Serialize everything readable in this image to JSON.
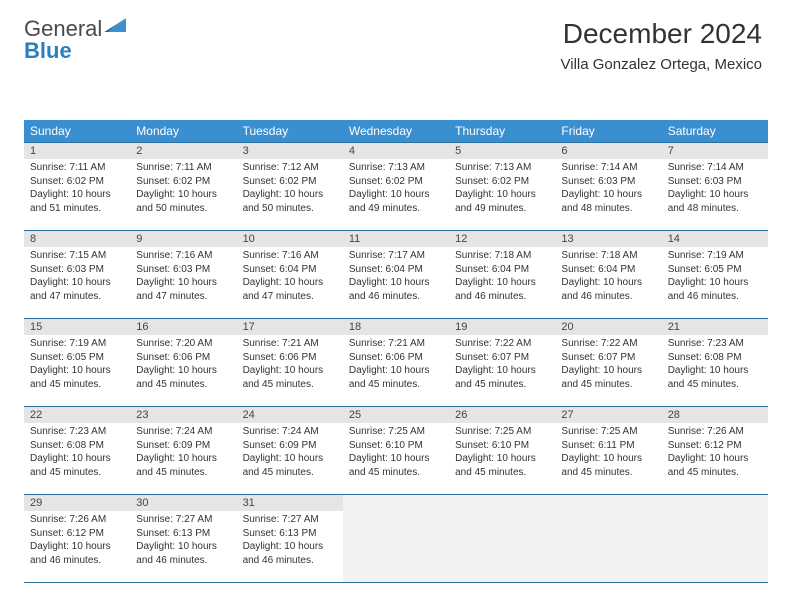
{
  "brand": {
    "part1": "General",
    "part2": "Blue"
  },
  "title": "December 2024",
  "location": "Villa Gonzalez Ortega, Mexico",
  "colors": {
    "header_bg": "#3a8fd0",
    "header_border": "#2a6fa0",
    "daynum_bg": "#e5e5e5",
    "empty_bg": "#f2f2f2",
    "text": "#333333",
    "page_bg": "#ffffff"
  },
  "typography": {
    "title_fontsize": 28,
    "location_fontsize": 15,
    "dayhead_fontsize": 12,
    "cell_fontsize": 10
  },
  "weekdays": [
    "Sunday",
    "Monday",
    "Tuesday",
    "Wednesday",
    "Thursday",
    "Friday",
    "Saturday"
  ],
  "weeks": [
    [
      {
        "n": "1",
        "sr": "7:11 AM",
        "ss": "6:02 PM",
        "dl": "10 hours and 51 minutes."
      },
      {
        "n": "2",
        "sr": "7:11 AM",
        "ss": "6:02 PM",
        "dl": "10 hours and 50 minutes."
      },
      {
        "n": "3",
        "sr": "7:12 AM",
        "ss": "6:02 PM",
        "dl": "10 hours and 50 minutes."
      },
      {
        "n": "4",
        "sr": "7:13 AM",
        "ss": "6:02 PM",
        "dl": "10 hours and 49 minutes."
      },
      {
        "n": "5",
        "sr": "7:13 AM",
        "ss": "6:02 PM",
        "dl": "10 hours and 49 minutes."
      },
      {
        "n": "6",
        "sr": "7:14 AM",
        "ss": "6:03 PM",
        "dl": "10 hours and 48 minutes."
      },
      {
        "n": "7",
        "sr": "7:14 AM",
        "ss": "6:03 PM",
        "dl": "10 hours and 48 minutes."
      }
    ],
    [
      {
        "n": "8",
        "sr": "7:15 AM",
        "ss": "6:03 PM",
        "dl": "10 hours and 47 minutes."
      },
      {
        "n": "9",
        "sr": "7:16 AM",
        "ss": "6:03 PM",
        "dl": "10 hours and 47 minutes."
      },
      {
        "n": "10",
        "sr": "7:16 AM",
        "ss": "6:04 PM",
        "dl": "10 hours and 47 minutes."
      },
      {
        "n": "11",
        "sr": "7:17 AM",
        "ss": "6:04 PM",
        "dl": "10 hours and 46 minutes."
      },
      {
        "n": "12",
        "sr": "7:18 AM",
        "ss": "6:04 PM",
        "dl": "10 hours and 46 minutes."
      },
      {
        "n": "13",
        "sr": "7:18 AM",
        "ss": "6:04 PM",
        "dl": "10 hours and 46 minutes."
      },
      {
        "n": "14",
        "sr": "7:19 AM",
        "ss": "6:05 PM",
        "dl": "10 hours and 46 minutes."
      }
    ],
    [
      {
        "n": "15",
        "sr": "7:19 AM",
        "ss": "6:05 PM",
        "dl": "10 hours and 45 minutes."
      },
      {
        "n": "16",
        "sr": "7:20 AM",
        "ss": "6:06 PM",
        "dl": "10 hours and 45 minutes."
      },
      {
        "n": "17",
        "sr": "7:21 AM",
        "ss": "6:06 PM",
        "dl": "10 hours and 45 minutes."
      },
      {
        "n": "18",
        "sr": "7:21 AM",
        "ss": "6:06 PM",
        "dl": "10 hours and 45 minutes."
      },
      {
        "n": "19",
        "sr": "7:22 AM",
        "ss": "6:07 PM",
        "dl": "10 hours and 45 minutes."
      },
      {
        "n": "20",
        "sr": "7:22 AM",
        "ss": "6:07 PM",
        "dl": "10 hours and 45 minutes."
      },
      {
        "n": "21",
        "sr": "7:23 AM",
        "ss": "6:08 PM",
        "dl": "10 hours and 45 minutes."
      }
    ],
    [
      {
        "n": "22",
        "sr": "7:23 AM",
        "ss": "6:08 PM",
        "dl": "10 hours and 45 minutes."
      },
      {
        "n": "23",
        "sr": "7:24 AM",
        "ss": "6:09 PM",
        "dl": "10 hours and 45 minutes."
      },
      {
        "n": "24",
        "sr": "7:24 AM",
        "ss": "6:09 PM",
        "dl": "10 hours and 45 minutes."
      },
      {
        "n": "25",
        "sr": "7:25 AM",
        "ss": "6:10 PM",
        "dl": "10 hours and 45 minutes."
      },
      {
        "n": "26",
        "sr": "7:25 AM",
        "ss": "6:10 PM",
        "dl": "10 hours and 45 minutes."
      },
      {
        "n": "27",
        "sr": "7:25 AM",
        "ss": "6:11 PM",
        "dl": "10 hours and 45 minutes."
      },
      {
        "n": "28",
        "sr": "7:26 AM",
        "ss": "6:12 PM",
        "dl": "10 hours and 45 minutes."
      }
    ],
    [
      {
        "n": "29",
        "sr": "7:26 AM",
        "ss": "6:12 PM",
        "dl": "10 hours and 46 minutes."
      },
      {
        "n": "30",
        "sr": "7:27 AM",
        "ss": "6:13 PM",
        "dl": "10 hours and 46 minutes."
      },
      {
        "n": "31",
        "sr": "7:27 AM",
        "ss": "6:13 PM",
        "dl": "10 hours and 46 minutes."
      },
      null,
      null,
      null,
      null
    ]
  ],
  "labels": {
    "sunrise_prefix": "Sunrise: ",
    "sunset_prefix": "Sunset: ",
    "daylight_prefix": "Daylight: "
  }
}
